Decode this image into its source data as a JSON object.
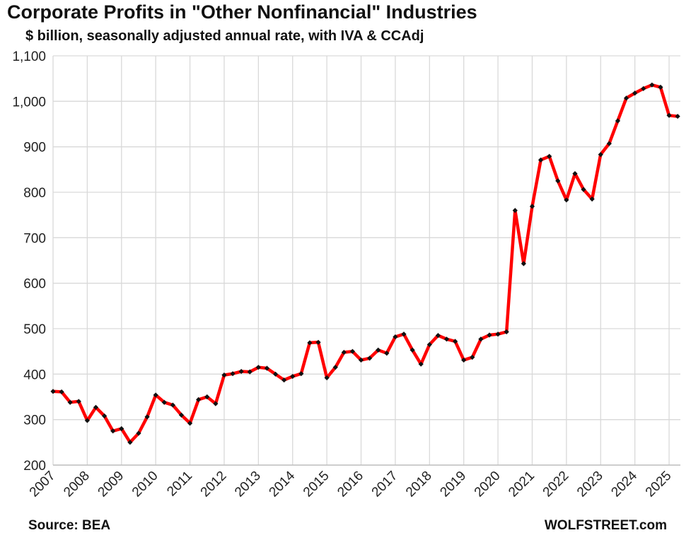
{
  "header": {
    "title": "Corporate Profits in \"Other Nonfinancial\" Industries",
    "subtitle": "$ billion, seasonally adjusted annual rate, with IVA & CCAdj"
  },
  "footer": {
    "source": "Source: BEA",
    "brand": "WOLFSTREET.com"
  },
  "colors": {
    "line": "#ff0000",
    "marker": "#111111",
    "grid": "#d9d9d9"
  },
  "chart_data": {
    "type": "line",
    "title": "Corporate Profits in \"Other Nonfinancial\" Industries",
    "subtitle": "$ billion, seasonally adjusted annual rate, with IVA & CCAdj",
    "xlabel": "",
    "ylabel": "",
    "ylim": [
      200,
      1100
    ],
    "yticks": [
      "200",
      "300",
      "400",
      "500",
      "600",
      "700",
      "800",
      "900",
      "1,000",
      "1,100"
    ],
    "xticks": [
      "2007",
      "2008",
      "2009",
      "2010",
      "2011",
      "2012",
      "2013",
      "2014",
      "2015",
      "2016",
      "2017",
      "2018",
      "2019",
      "2020",
      "2021",
      "2022",
      "2023",
      "2024",
      "2025"
    ],
    "grid": true,
    "legend": "none",
    "series": [
      {
        "x": [
          "2007 Q1",
          "2007 Q2",
          "2007 Q3",
          "2007 Q4",
          "2008 Q1",
          "2008 Q2",
          "2008 Q3",
          "2008 Q4",
          "2009 Q1",
          "2009 Q2",
          "2009 Q3",
          "2009 Q4",
          "2010 Q1",
          "2010 Q2",
          "2010 Q3",
          "2010 Q4",
          "2011 Q1",
          "2011 Q2",
          "2011 Q3",
          "2011 Q4",
          "2012 Q1",
          "2012 Q2",
          "2012 Q3",
          "2012 Q4",
          "2013 Q1",
          "2013 Q2",
          "2013 Q3",
          "2013 Q4",
          "2014 Q1",
          "2014 Q2",
          "2014 Q3",
          "2014 Q4",
          "2015 Q1",
          "2015 Q2",
          "2015 Q3",
          "2015 Q4",
          "2016 Q1",
          "2016 Q2",
          "2016 Q3",
          "2016 Q4",
          "2017 Q1",
          "2017 Q2",
          "2017 Q3",
          "2017 Q4",
          "2018 Q1",
          "2018 Q2",
          "2018 Q3",
          "2018 Q4",
          "2019 Q1",
          "2019 Q2",
          "2019 Q3",
          "2019 Q4",
          "2020 Q1",
          "2020 Q2",
          "2020 Q3",
          "2020 Q4",
          "2021 Q1",
          "2021 Q2",
          "2021 Q3",
          "2021 Q4",
          "2022 Q1",
          "2022 Q2",
          "2022 Q3",
          "2022 Q4",
          "2023 Q1",
          "2023 Q2",
          "2023 Q3",
          "2023 Q4",
          "2024 Q1",
          "2024 Q2",
          "2024 Q3",
          "2024 Q4",
          "2025 Q1",
          "2025 Q2"
        ],
        "values": [
          362,
          361,
          338,
          340,
          298,
          327,
          308,
          275,
          280,
          250,
          270,
          306,
          354,
          338,
          332,
          310,
          292,
          344,
          350,
          335,
          398,
          401,
          406,
          405,
          415,
          413,
          400,
          387,
          395,
          401,
          469,
          470,
          392,
          415,
          448,
          450,
          431,
          435,
          453,
          446,
          482,
          488,
          453,
          422,
          465,
          485,
          477,
          472,
          431,
          437,
          477,
          486,
          488,
          493,
          760,
          643,
          769,
          871,
          879,
          825,
          783,
          841,
          806,
          785,
          883,
          907,
          957,
          1007,
          1018,
          1028,
          1036,
          1031,
          969,
          967
        ]
      }
    ]
  }
}
